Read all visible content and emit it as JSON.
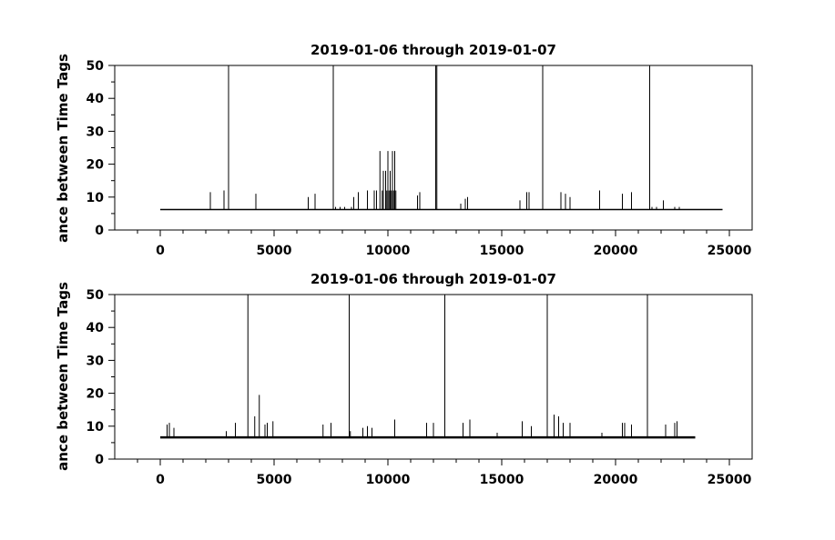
{
  "chart_data": [
    {
      "type": "line",
      "title": "2019-01-06 through 2019-01-07",
      "ylabel": "ance between Time Tags",
      "xlabel": "",
      "xlim": [
        -2000,
        26000
      ],
      "ylim": [
        0,
        50
      ],
      "xticks": [
        0,
        5000,
        10000,
        15000,
        20000,
        25000
      ],
      "yticks": [
        0,
        10,
        20,
        30,
        40,
        50
      ],
      "xminor_step": 1000,
      "yminor_step": 5,
      "grid": false,
      "baseline": 6.2,
      "x_range": [
        0,
        24700
      ],
      "spikes": [
        {
          "x": 2200,
          "y": 11.5
        },
        {
          "x": 2800,
          "y": 12
        },
        {
          "x": 3000,
          "y": 50
        },
        {
          "x": 4200,
          "y": 11
        },
        {
          "x": 6500,
          "y": 10
        },
        {
          "x": 6800,
          "y": 11
        },
        {
          "x": 7600,
          "y": 50
        },
        {
          "x": 7700,
          "y": 7
        },
        {
          "x": 7900,
          "y": 7
        },
        {
          "x": 8100,
          "y": 7
        },
        {
          "x": 8400,
          "y": 7
        },
        {
          "x": 8500,
          "y": 10
        },
        {
          "x": 8700,
          "y": 11.5
        },
        {
          "x": 9100,
          "y": 12
        },
        {
          "x": 9400,
          "y": 12
        },
        {
          "x": 9500,
          "y": 12
        },
        {
          "x": 9650,
          "y": 24
        },
        {
          "x": 9750,
          "y": 12
        },
        {
          "x": 9800,
          "y": 18
        },
        {
          "x": 9900,
          "y": 18
        },
        {
          "x": 9950,
          "y": 12
        },
        {
          "x": 10000,
          "y": 24
        },
        {
          "x": 10050,
          "y": 12
        },
        {
          "x": 10100,
          "y": 18
        },
        {
          "x": 10150,
          "y": 12
        },
        {
          "x": 10200,
          "y": 24
        },
        {
          "x": 10250,
          "y": 12
        },
        {
          "x": 10300,
          "y": 24
        },
        {
          "x": 10350,
          "y": 12
        },
        {
          "x": 11300,
          "y": 10.5
        },
        {
          "x": 11400,
          "y": 11.5
        },
        {
          "x": 12100,
          "y": 50
        },
        {
          "x": 12150,
          "y": 50
        },
        {
          "x": 13200,
          "y": 8
        },
        {
          "x": 13400,
          "y": 9.5
        },
        {
          "x": 13500,
          "y": 10
        },
        {
          "x": 15800,
          "y": 9
        },
        {
          "x": 16100,
          "y": 11.5
        },
        {
          "x": 16200,
          "y": 11.5
        },
        {
          "x": 16800,
          "y": 50
        },
        {
          "x": 17600,
          "y": 11.5
        },
        {
          "x": 17800,
          "y": 11
        },
        {
          "x": 18000,
          "y": 10
        },
        {
          "x": 19300,
          "y": 12
        },
        {
          "x": 20300,
          "y": 11
        },
        {
          "x": 20700,
          "y": 11.5
        },
        {
          "x": 21500,
          "y": 50
        },
        {
          "x": 21600,
          "y": 7
        },
        {
          "x": 21800,
          "y": 7
        },
        {
          "x": 22100,
          "y": 9
        },
        {
          "x": 22600,
          "y": 7
        },
        {
          "x": 22800,
          "y": 7
        }
      ]
    },
    {
      "type": "line",
      "title": "2019-01-06 through 2019-01-07",
      "ylabel": "ance between Time Tags",
      "xlabel": "",
      "xlim": [
        -2000,
        26000
      ],
      "ylim": [
        0,
        50
      ],
      "xticks": [
        0,
        5000,
        10000,
        15000,
        20000,
        25000
      ],
      "yticks": [
        0,
        10,
        20,
        30,
        40,
        50
      ],
      "xminor_step": 1000,
      "yminor_step": 5,
      "grid": false,
      "baseline": 6.6,
      "x_range": [
        0,
        23500
      ],
      "spikes": [
        {
          "x": 300,
          "y": 10.5
        },
        {
          "x": 400,
          "y": 11
        },
        {
          "x": 600,
          "y": 9.5
        },
        {
          "x": 2900,
          "y": 8.5
        },
        {
          "x": 3300,
          "y": 11
        },
        {
          "x": 3850,
          "y": 50
        },
        {
          "x": 4150,
          "y": 13
        },
        {
          "x": 4350,
          "y": 19.5
        },
        {
          "x": 4600,
          "y": 10.5
        },
        {
          "x": 4700,
          "y": 11
        },
        {
          "x": 4950,
          "y": 11.5
        },
        {
          "x": 7150,
          "y": 10.5
        },
        {
          "x": 7500,
          "y": 11
        },
        {
          "x": 8300,
          "y": 50
        },
        {
          "x": 8350,
          "y": 8.5
        },
        {
          "x": 8900,
          "y": 9.5
        },
        {
          "x": 9100,
          "y": 10
        },
        {
          "x": 9300,
          "y": 9.5
        },
        {
          "x": 10300,
          "y": 12
        },
        {
          "x": 11700,
          "y": 11
        },
        {
          "x": 12000,
          "y": 11
        },
        {
          "x": 12500,
          "y": 50
        },
        {
          "x": 13300,
          "y": 11
        },
        {
          "x": 13600,
          "y": 12
        },
        {
          "x": 14800,
          "y": 8
        },
        {
          "x": 15900,
          "y": 11.5
        },
        {
          "x": 16300,
          "y": 10
        },
        {
          "x": 17000,
          "y": 50
        },
        {
          "x": 17300,
          "y": 13.5
        },
        {
          "x": 17500,
          "y": 13
        },
        {
          "x": 17700,
          "y": 11
        },
        {
          "x": 18000,
          "y": 11
        },
        {
          "x": 19400,
          "y": 8
        },
        {
          "x": 20300,
          "y": 11
        },
        {
          "x": 20400,
          "y": 11
        },
        {
          "x": 20700,
          "y": 10.5
        },
        {
          "x": 21400,
          "y": 50
        },
        {
          "x": 22200,
          "y": 10.5
        },
        {
          "x": 22600,
          "y": 11
        },
        {
          "x": 22700,
          "y": 11.5
        }
      ]
    }
  ]
}
